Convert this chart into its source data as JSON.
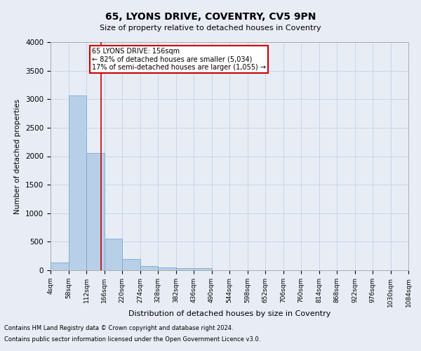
{
  "title": "65, LYONS DRIVE, COVENTRY, CV5 9PN",
  "subtitle": "Size of property relative to detached houses in Coventry",
  "xlabel": "Distribution of detached houses by size in Coventry",
  "ylabel": "Number of detached properties",
  "footnote1": "Contains HM Land Registry data © Crown copyright and database right 2024.",
  "footnote2": "Contains public sector information licensed under the Open Government Licence v3.0.",
  "bar_color": "#b8cfe8",
  "bar_edge_color": "#7aaad0",
  "grid_color": "#c8d4e8",
  "vline_color": "#cc0000",
  "vline_x": 156,
  "annotation_text1": "65 LYONS DRIVE: 156sqm",
  "annotation_text2": "← 82% of detached houses are smaller (5,034)",
  "annotation_text3": "17% of semi-detached houses are larger (1,055) →",
  "annotation_box_color": "#ffffff",
  "annotation_box_edge": "#cc0000",
  "bin_edges": [
    4,
    58,
    112,
    166,
    220,
    274,
    328,
    382,
    436,
    490,
    544,
    598,
    652,
    706,
    760,
    814,
    868,
    922,
    976,
    1030,
    1084
  ],
  "bar_heights": [
    130,
    3060,
    2060,
    560,
    200,
    80,
    55,
    40,
    40,
    0,
    0,
    0,
    0,
    0,
    0,
    0,
    0,
    0,
    0,
    0
  ],
  "ylim": [
    0,
    4000
  ],
  "xlim": [
    4,
    1084
  ],
  "background_color": "#e8edf5",
  "plot_bg_color": "#e8edf5"
}
